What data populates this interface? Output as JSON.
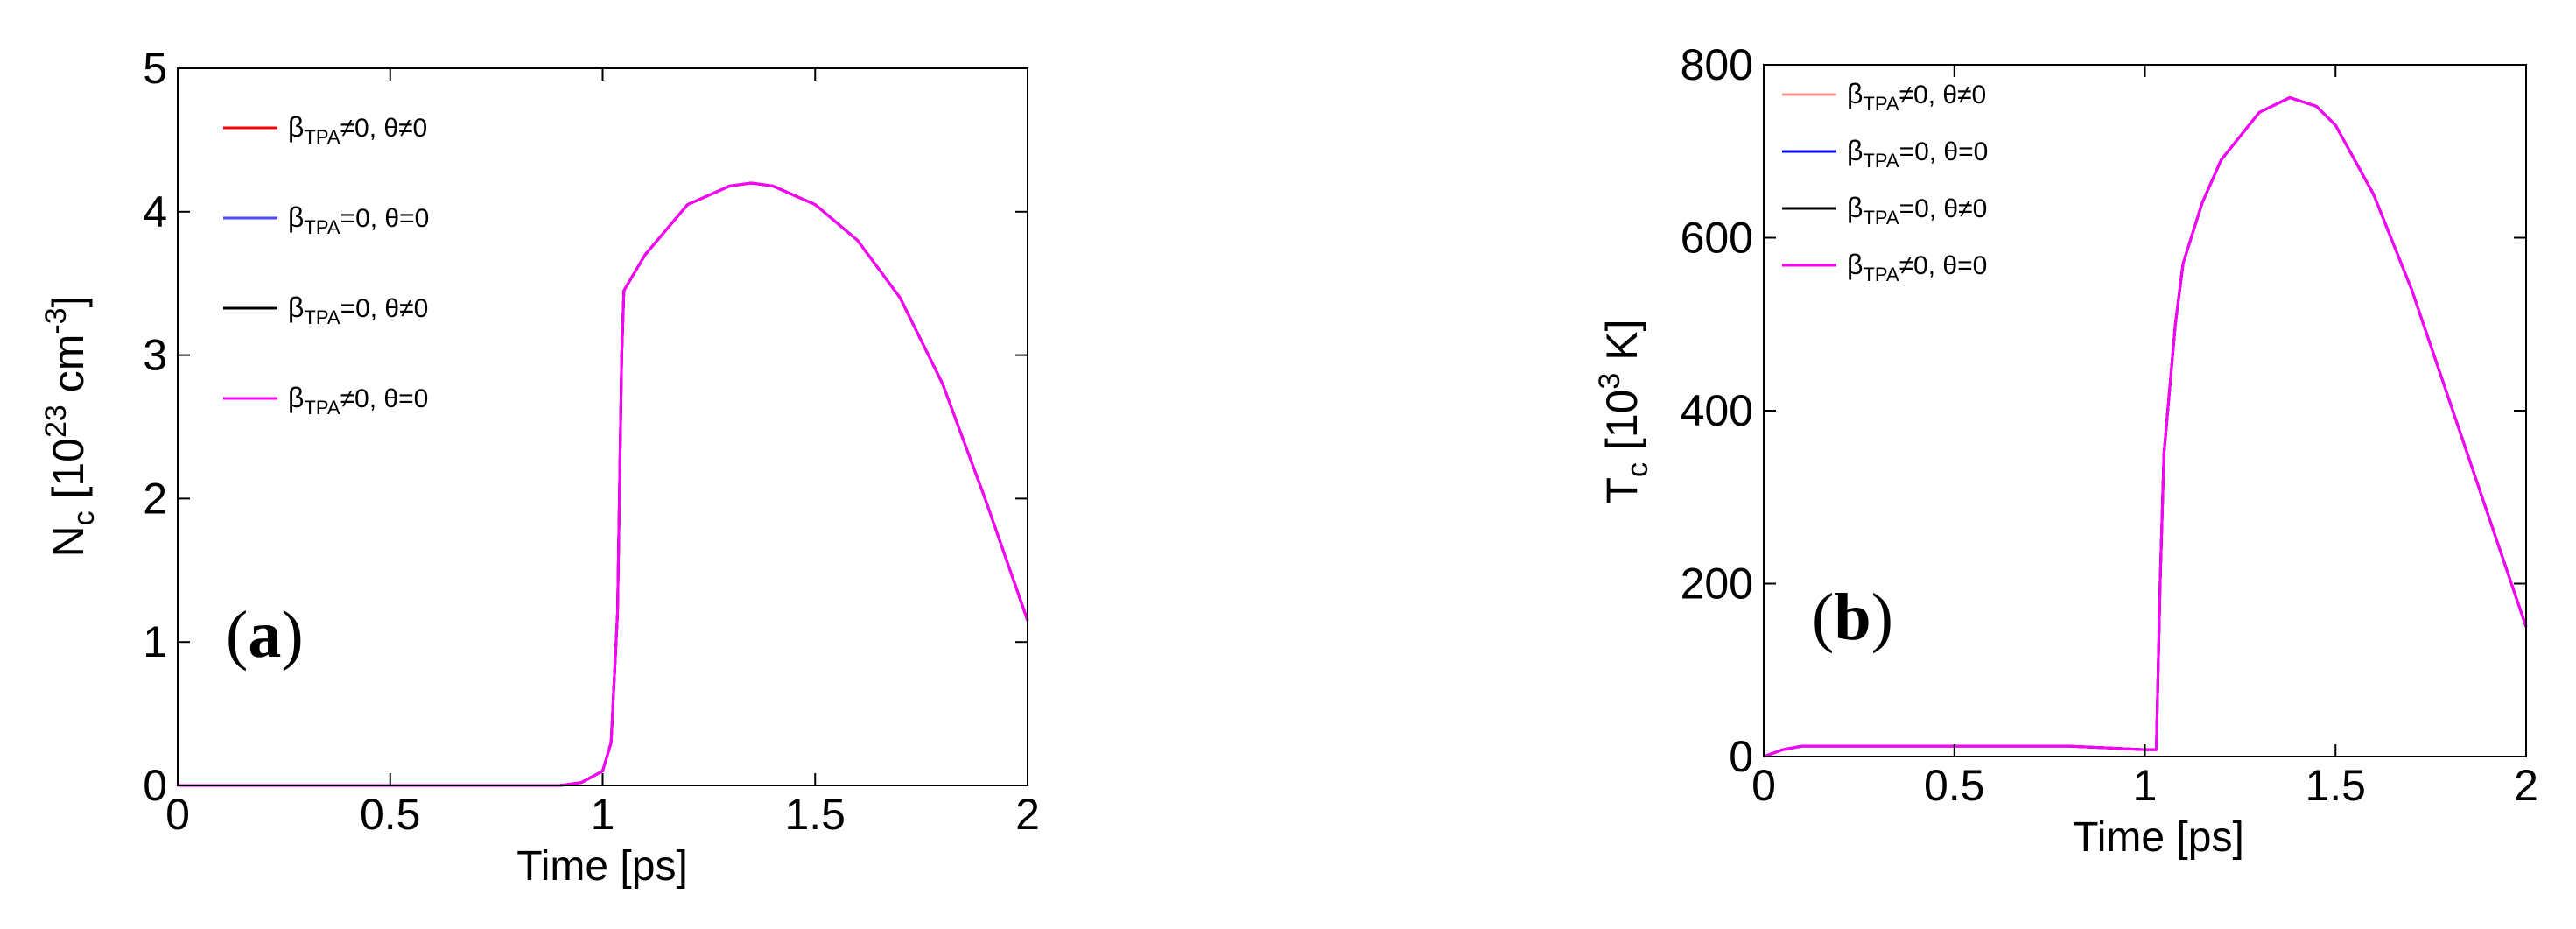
{
  "chart_data": [
    {
      "type": "line",
      "panel_label": {
        "open": "(",
        "letter": "a",
        "close": ")"
      },
      "xlabel": "Time [ps]",
      "ylabel": {
        "main": "N",
        "sub": "c",
        "rest": " [10",
        "sup": "23",
        "unit": " cm",
        "unit_sup": "-3",
        "close": "]"
      },
      "xlim": [
        0,
        2
      ],
      "ylim": [
        0,
        5
      ],
      "xticks": [
        0,
        0.5,
        1,
        1.5,
        2
      ],
      "xtick_labels": [
        "0",
        "0.5",
        "1",
        "1.5",
        "2"
      ],
      "yticks": [
        0,
        1,
        2,
        3,
        4,
        5
      ],
      "ytick_labels": [
        "0",
        "1",
        "2",
        "3",
        "4",
        "5"
      ],
      "legend_position": "top-left",
      "series": [
        {
          "legend": {
            "pre": "β",
            "sub": "TPA",
            "post": "≠0,  θ≠0"
          },
          "color": "#ff0000",
          "x": [
            0,
            0.5,
            0.9,
            0.95,
            1.0,
            1.02,
            1.035,
            1.045,
            1.05,
            1.1,
            1.2,
            1.3,
            1.35,
            1.4,
            1.5,
            1.6,
            1.7,
            1.8,
            1.9,
            2.0
          ],
          "y": [
            0,
            0,
            0,
            0.02,
            0.1,
            0.3,
            1.2,
            3.0,
            3.45,
            3.7,
            4.05,
            4.18,
            4.2,
            4.18,
            4.05,
            3.8,
            3.4,
            2.8,
            2.0,
            1.15
          ]
        },
        {
          "legend": {
            "pre": "β",
            "sub": "TPA",
            "post": "=0,  θ=0"
          },
          "color": "#4a4aff",
          "x": [
            0,
            0.5,
            0.9,
            0.95,
            1.0,
            1.02,
            1.035,
            1.045,
            1.05,
            1.1,
            1.2,
            1.3,
            1.35,
            1.4,
            1.5,
            1.6,
            1.7,
            1.8,
            1.9,
            2.0
          ],
          "y": [
            0,
            0,
            0,
            0.02,
            0.1,
            0.3,
            1.2,
            3.0,
            3.45,
            3.7,
            4.05,
            4.18,
            4.2,
            4.18,
            4.05,
            3.8,
            3.4,
            2.8,
            2.0,
            1.15
          ]
        },
        {
          "legend": {
            "pre": "β",
            "sub": "TPA",
            "post": "=0,  θ≠0"
          },
          "color": "#000000",
          "x": [
            0,
            0.5,
            0.9,
            0.95,
            1.0,
            1.02,
            1.035,
            1.045,
            1.05,
            1.1,
            1.2,
            1.3,
            1.35,
            1.4,
            1.5,
            1.6,
            1.7,
            1.8,
            1.9,
            2.0
          ],
          "y": [
            0,
            0,
            0,
            0.02,
            0.1,
            0.3,
            1.2,
            3.0,
            3.45,
            3.7,
            4.05,
            4.18,
            4.2,
            4.18,
            4.05,
            3.8,
            3.4,
            2.8,
            2.0,
            1.15
          ]
        },
        {
          "legend": {
            "pre": "β",
            "sub": "TPA",
            "post": "≠0,  θ=0"
          },
          "color": "#ff00ff",
          "x": [
            0,
            0.5,
            0.9,
            0.95,
            1.0,
            1.02,
            1.035,
            1.045,
            1.05,
            1.1,
            1.2,
            1.3,
            1.35,
            1.4,
            1.5,
            1.6,
            1.7,
            1.8,
            1.9,
            2.0
          ],
          "y": [
            0,
            0,
            0,
            0.02,
            0.1,
            0.3,
            1.2,
            3.0,
            3.45,
            3.7,
            4.05,
            4.18,
            4.2,
            4.18,
            4.05,
            3.8,
            3.4,
            2.8,
            2.0,
            1.15
          ]
        }
      ]
    },
    {
      "type": "line",
      "panel_label": {
        "open": "(",
        "letter": "b",
        "close": ")"
      },
      "xlabel": "Time [ps]",
      "ylabel": {
        "main": "T",
        "sub": "c",
        "rest": " [10",
        "sup": "3",
        "unit": " K",
        "unit_sup": "",
        "close": "]"
      },
      "xlim": [
        0,
        2
      ],
      "ylim": [
        0,
        800
      ],
      "xticks": [
        0,
        0.5,
        1,
        1.5,
        2
      ],
      "xtick_labels": [
        "0",
        "0.5",
        "1",
        "1.5",
        "2"
      ],
      "yticks": [
        0,
        200,
        400,
        600,
        800
      ],
      "ytick_labels": [
        "0",
        "200",
        "400",
        "600",
        "800"
      ],
      "legend_position": "top-left",
      "series": [
        {
          "legend": {
            "pre": "β",
            "sub": "TPA",
            "post": "≠0,  θ≠0"
          },
          "color": "#ff9090",
          "x": [
            0,
            0.05,
            0.1,
            0.2,
            0.5,
            0.8,
            1.0,
            1.03,
            1.04,
            1.05,
            1.08,
            1.1,
            1.15,
            1.2,
            1.3,
            1.38,
            1.45,
            1.5,
            1.6,
            1.7,
            1.8,
            1.9,
            2.0
          ],
          "y": [
            0,
            8,
            12,
            12,
            12,
            12,
            8,
            8,
            200,
            350,
            500,
            570,
            640,
            690,
            745,
            762,
            752,
            730,
            650,
            540,
            410,
            280,
            150
          ]
        },
        {
          "legend": {
            "pre": "β",
            "sub": "TPA",
            "post": "=0,  θ=0"
          },
          "color": "#0000ff",
          "x": [
            0,
            0.05,
            0.1,
            0.2,
            0.5,
            0.8,
            1.0,
            1.03,
            1.04,
            1.05,
            1.08,
            1.1,
            1.15,
            1.2,
            1.3,
            1.38,
            1.45,
            1.5,
            1.6,
            1.7,
            1.8,
            1.9,
            2.0
          ],
          "y": [
            0,
            8,
            12,
            12,
            12,
            12,
            8,
            8,
            200,
            350,
            500,
            570,
            640,
            690,
            745,
            762,
            752,
            730,
            650,
            540,
            410,
            280,
            150
          ]
        },
        {
          "legend": {
            "pre": "β",
            "sub": "TPA",
            "post": "=0,  θ≠0"
          },
          "color": "#000000",
          "x": [
            0,
            0.05,
            0.1,
            0.2,
            0.5,
            0.8,
            1.0,
            1.03,
            1.04,
            1.05,
            1.08,
            1.1,
            1.15,
            1.2,
            1.3,
            1.38,
            1.45,
            1.5,
            1.6,
            1.7,
            1.8,
            1.9,
            2.0
          ],
          "y": [
            0,
            8,
            12,
            12,
            12,
            12,
            8,
            8,
            200,
            350,
            500,
            570,
            640,
            690,
            745,
            762,
            752,
            730,
            650,
            540,
            410,
            280,
            150
          ]
        },
        {
          "legend": {
            "pre": "β",
            "sub": "TPA",
            "post": "≠0,  θ=0"
          },
          "color": "#ff00ff",
          "x": [
            0,
            0.05,
            0.1,
            0.2,
            0.5,
            0.8,
            1.0,
            1.03,
            1.04,
            1.05,
            1.08,
            1.1,
            1.15,
            1.2,
            1.3,
            1.38,
            1.45,
            1.5,
            1.6,
            1.7,
            1.8,
            1.9,
            2.0
          ],
          "y": [
            0,
            8,
            12,
            12,
            12,
            12,
            8,
            8,
            200,
            350,
            500,
            570,
            640,
            690,
            745,
            762,
            752,
            730,
            650,
            540,
            410,
            280,
            150
          ]
        }
      ]
    }
  ]
}
